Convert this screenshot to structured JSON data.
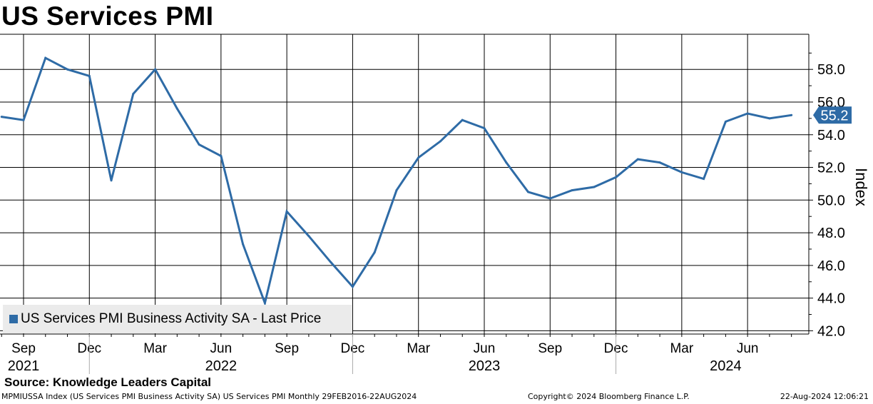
{
  "chart_data": {
    "type": "line",
    "title": "US Services PMI",
    "ylabel": "Index",
    "ylim": [
      41.8,
      59.8
    ],
    "yticks": [
      42,
      44,
      46,
      48,
      50,
      52,
      54,
      56,
      58
    ],
    "ytick_labels": [
      "42.0",
      "44.0",
      "46.0",
      "48.0",
      "50.0",
      "52.0",
      "54.0",
      "56.0",
      "58.0"
    ],
    "x_month_ticks": [
      {
        "label": "Sep",
        "idx": 1
      },
      {
        "label": "Dec",
        "idx": 4
      },
      {
        "label": "Mar",
        "idx": 7
      },
      {
        "label": "Jun",
        "idx": 10
      },
      {
        "label": "Sep",
        "idx": 13
      },
      {
        "label": "Dec",
        "idx": 16
      },
      {
        "label": "Mar",
        "idx": 19
      },
      {
        "label": "Jun",
        "idx": 22
      },
      {
        "label": "Sep",
        "idx": 25
      },
      {
        "label": "Dec",
        "idx": 28
      },
      {
        "label": "Mar",
        "idx": 31
      },
      {
        "label": "Jun",
        "idx": 34
      }
    ],
    "x_year_labels": [
      {
        "label": "2021",
        "idx": 1
      },
      {
        "label": "2022",
        "idx": 10
      },
      {
        "label": "2023",
        "idx": 22
      },
      {
        "label": "2024",
        "idx": 33
      }
    ],
    "year_separators": [
      4,
      16,
      28
    ],
    "series": [
      {
        "name": "US Services PMI Business Activity SA - Last Price",
        "color": "#2e6ba6",
        "x": [
          "Aug 2021",
          "Sep 2021",
          "Oct 2021",
          "Nov 2021",
          "Dec 2021",
          "Jan 2022",
          "Feb 2022",
          "Mar 2022",
          "Apr 2022",
          "May 2022",
          "Jun 2022",
          "Jul 2022",
          "Aug 2022",
          "Sep 2022",
          "Oct 2022",
          "Nov 2022",
          "Dec 2022",
          "Jan 2023",
          "Feb 2023",
          "Mar 2023",
          "Apr 2023",
          "May 2023",
          "Jun 2023",
          "Jul 2023",
          "Aug 2023",
          "Sep 2023",
          "Oct 2023",
          "Nov 2023",
          "Dec 2023",
          "Jan 2024",
          "Feb 2024",
          "Mar 2024",
          "Apr 2024",
          "May 2024",
          "Jun 2024",
          "Jul 2024",
          "Aug 2024"
        ],
        "values": [
          55.1,
          54.9,
          58.7,
          58.0,
          57.6,
          51.2,
          56.5,
          58.0,
          55.6,
          53.4,
          52.7,
          47.3,
          43.7,
          49.3,
          47.8,
          46.2,
          44.7,
          46.8,
          50.6,
          52.6,
          53.6,
          54.9,
          54.4,
          52.3,
          50.5,
          50.1,
          50.6,
          50.8,
          51.4,
          52.5,
          52.3,
          51.7,
          51.3,
          54.8,
          55.3,
          55.0,
          55.2
        ]
      }
    ],
    "last_value_label": "55.2"
  },
  "source": "Source: Knowledge Leaders Capital",
  "footer": {
    "description": "MPMIUSSA Index (US Services PMI Business Activity SA) US Services PMI  Monthly 29FEB2016-22AUG2024",
    "copyright": "Copyright© 2024 Bloomberg Finance L.P.",
    "timestamp": "22-Aug-2024 12:06:21"
  },
  "colors": {
    "line": "#2e6ba6",
    "grid": "#000000",
    "legend_bg": "#ebebeb"
  }
}
